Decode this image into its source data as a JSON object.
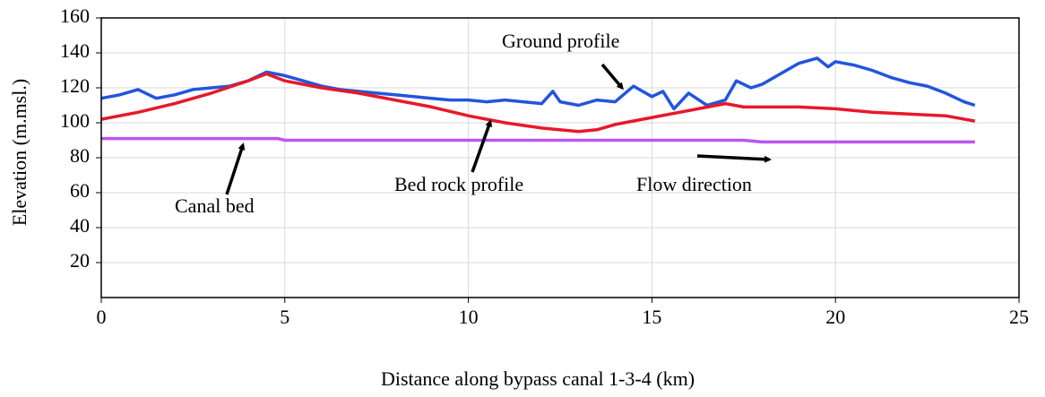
{
  "chart_data": {
    "type": "line",
    "x_label": "Distance along bypass canal 1-3-4 (km)",
    "y_label": "Elevation (m.msl.)",
    "xlim": [
      0,
      25
    ],
    "xticks": [
      0,
      5,
      10,
      15,
      20,
      25
    ],
    "ylim": [
      0,
      160
    ],
    "yticks": [
      20,
      40,
      60,
      80,
      100,
      120,
      140,
      160
    ],
    "grid": true,
    "series": [
      {
        "name": "Ground profile",
        "color": "#2255dd",
        "x": [
          0,
          0.5,
          1,
          1.5,
          2,
          2.5,
          3,
          3.5,
          4,
          4.5,
          5,
          5.5,
          6,
          6.5,
          7,
          7.5,
          8,
          8.5,
          9,
          9.5,
          10,
          10.5,
          11,
          11.5,
          12,
          12.3,
          12.5,
          13,
          13.5,
          14,
          14.5,
          15,
          15.3,
          15.6,
          16,
          16.5,
          17,
          17.3,
          17.7,
          18,
          18.5,
          19,
          19.5,
          19.8,
          20,
          20.5,
          21,
          21.5,
          22,
          22.5,
          23,
          23.5,
          23.8
        ],
        "values": [
          114,
          116,
          119,
          114,
          116,
          119,
          120,
          121,
          124,
          129,
          127,
          124,
          121,
          119,
          118,
          117,
          116,
          115,
          114,
          113,
          113,
          112,
          113,
          112,
          111,
          118,
          112,
          110,
          113,
          112,
          121,
          115,
          118,
          108,
          117,
          110,
          113,
          124,
          120,
          122,
          128,
          134,
          137,
          132,
          135,
          133,
          130,
          126,
          123,
          121,
          117,
          112,
          110
        ]
      },
      {
        "name": "Bed rock profile",
        "color": "#e8182a",
        "x": [
          0,
          1,
          2,
          3,
          4,
          4.5,
          5,
          6,
          7,
          8,
          9,
          10,
          11,
          12,
          13,
          13.5,
          14,
          15,
          16,
          17,
          17.5,
          18,
          19,
          20,
          21,
          22,
          23,
          23.8
        ],
        "values": [
          102,
          106,
          111,
          117,
          124,
          128,
          124,
          120,
          117,
          113,
          109,
          104,
          100,
          97,
          95,
          96,
          99,
          103,
          107,
          111,
          109,
          109,
          109,
          108,
          106,
          105,
          104,
          101
        ]
      },
      {
        "name": "Canal bed",
        "color": "#bb55ee",
        "x": [
          0,
          4.8,
          5,
          17.5,
          18,
          23.8
        ],
        "values": [
          91,
          91,
          90,
          90,
          89,
          89
        ]
      }
    ],
    "annotations": [
      "Flow direction"
    ]
  }
}
